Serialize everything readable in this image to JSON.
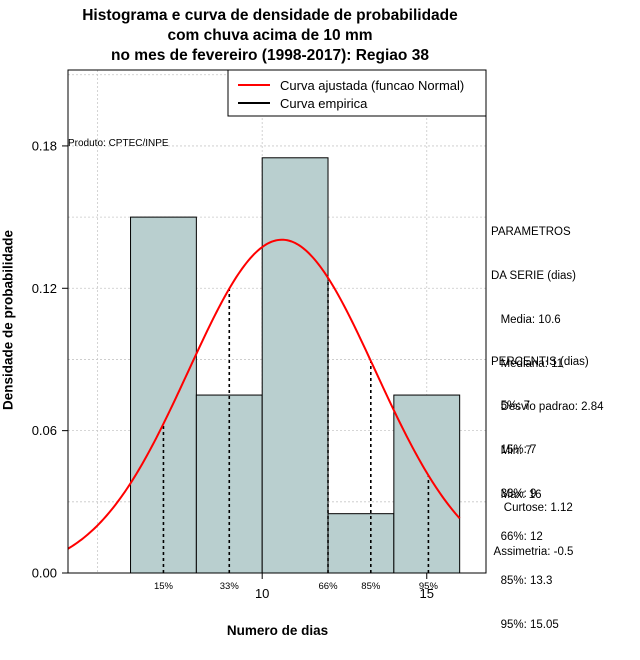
{
  "title_lines": [
    "Histograma e curva de densidade de probabilidade",
    "com chuva acima de 10 mm",
    "no mes de fevereiro (1998-2017): Regiao 38"
  ],
  "credit": "Produto: CPTEC/INPE",
  "chart_data": {
    "type": "bar",
    "title": "Histograma e curva de densidade de probabilidade com chuva acima de 10 mm no mes de fevereiro (1998-2017): Regiao 38",
    "xlabel": "Numero de dias",
    "ylabel": "Densidade de probabilidade",
    "xlim": [
      4.1,
      16.8
    ],
    "ylim": [
      0,
      0.212
    ],
    "x_ticks": [
      10,
      15
    ],
    "y_ticks": [
      0.0,
      0.06,
      0.12,
      0.18
    ],
    "y_tick_labels": [
      "0.00",
      "0.06",
      "0.12",
      "0.18"
    ],
    "grid": true,
    "legend_position": "top-right",
    "bins": [
      {
        "x0": 6,
        "x1": 8,
        "density": 0.15
      },
      {
        "x0": 8,
        "x1": 10,
        "density": 0.075
      },
      {
        "x0": 10,
        "x1": 12,
        "density": 0.175
      },
      {
        "x0": 12,
        "x1": 14,
        "density": 0.025
      },
      {
        "x0": 14,
        "x1": 16,
        "density": 0.075
      }
    ],
    "bar_color": "#b9cfcf",
    "normal_curve": {
      "name": "Curva ajustada (funcao Normal)",
      "color": "#ff0000",
      "mean": 10.6,
      "sd": 2.84,
      "x_range": [
        4.1,
        16
      ]
    },
    "empirical_curve": {
      "name": "Curva empirica",
      "color": "#000000"
    },
    "percentile_markers": [
      {
        "label": "15%",
        "x": 7
      },
      {
        "label": "33%",
        "x": 9
      },
      {
        "label": "66%",
        "x": 12
      },
      {
        "label": "85%",
        "x": 13.3
      },
      {
        "label": "95%",
        "x": 15.05
      }
    ]
  },
  "legend": {
    "items": [
      {
        "label": "Curva ajustada (funcao Normal)",
        "color": "#ff0000"
      },
      {
        "label": "Curva empirica",
        "color": "#000000"
      }
    ]
  },
  "parametros": {
    "lines": [
      "PARAMETROS",
      "DA SERIE (dias)",
      "   Media: 10.6",
      "   Mediana: 11",
      "   Desvio padrao: 2.84",
      "   Min: 7",
      "   Max: 16"
    ]
  },
  "percentis": {
    "lines": [
      "PERCENTIS (dias)",
      "   5%: 7",
      "   15%: 7",
      "   33%: 9",
      "   66%: 12",
      "   85%: 13.3",
      "   95%: 15.05"
    ]
  },
  "stats": {
    "lines": [
      "    Curtose: 1.12",
      " Assimetria: -0.5"
    ]
  }
}
